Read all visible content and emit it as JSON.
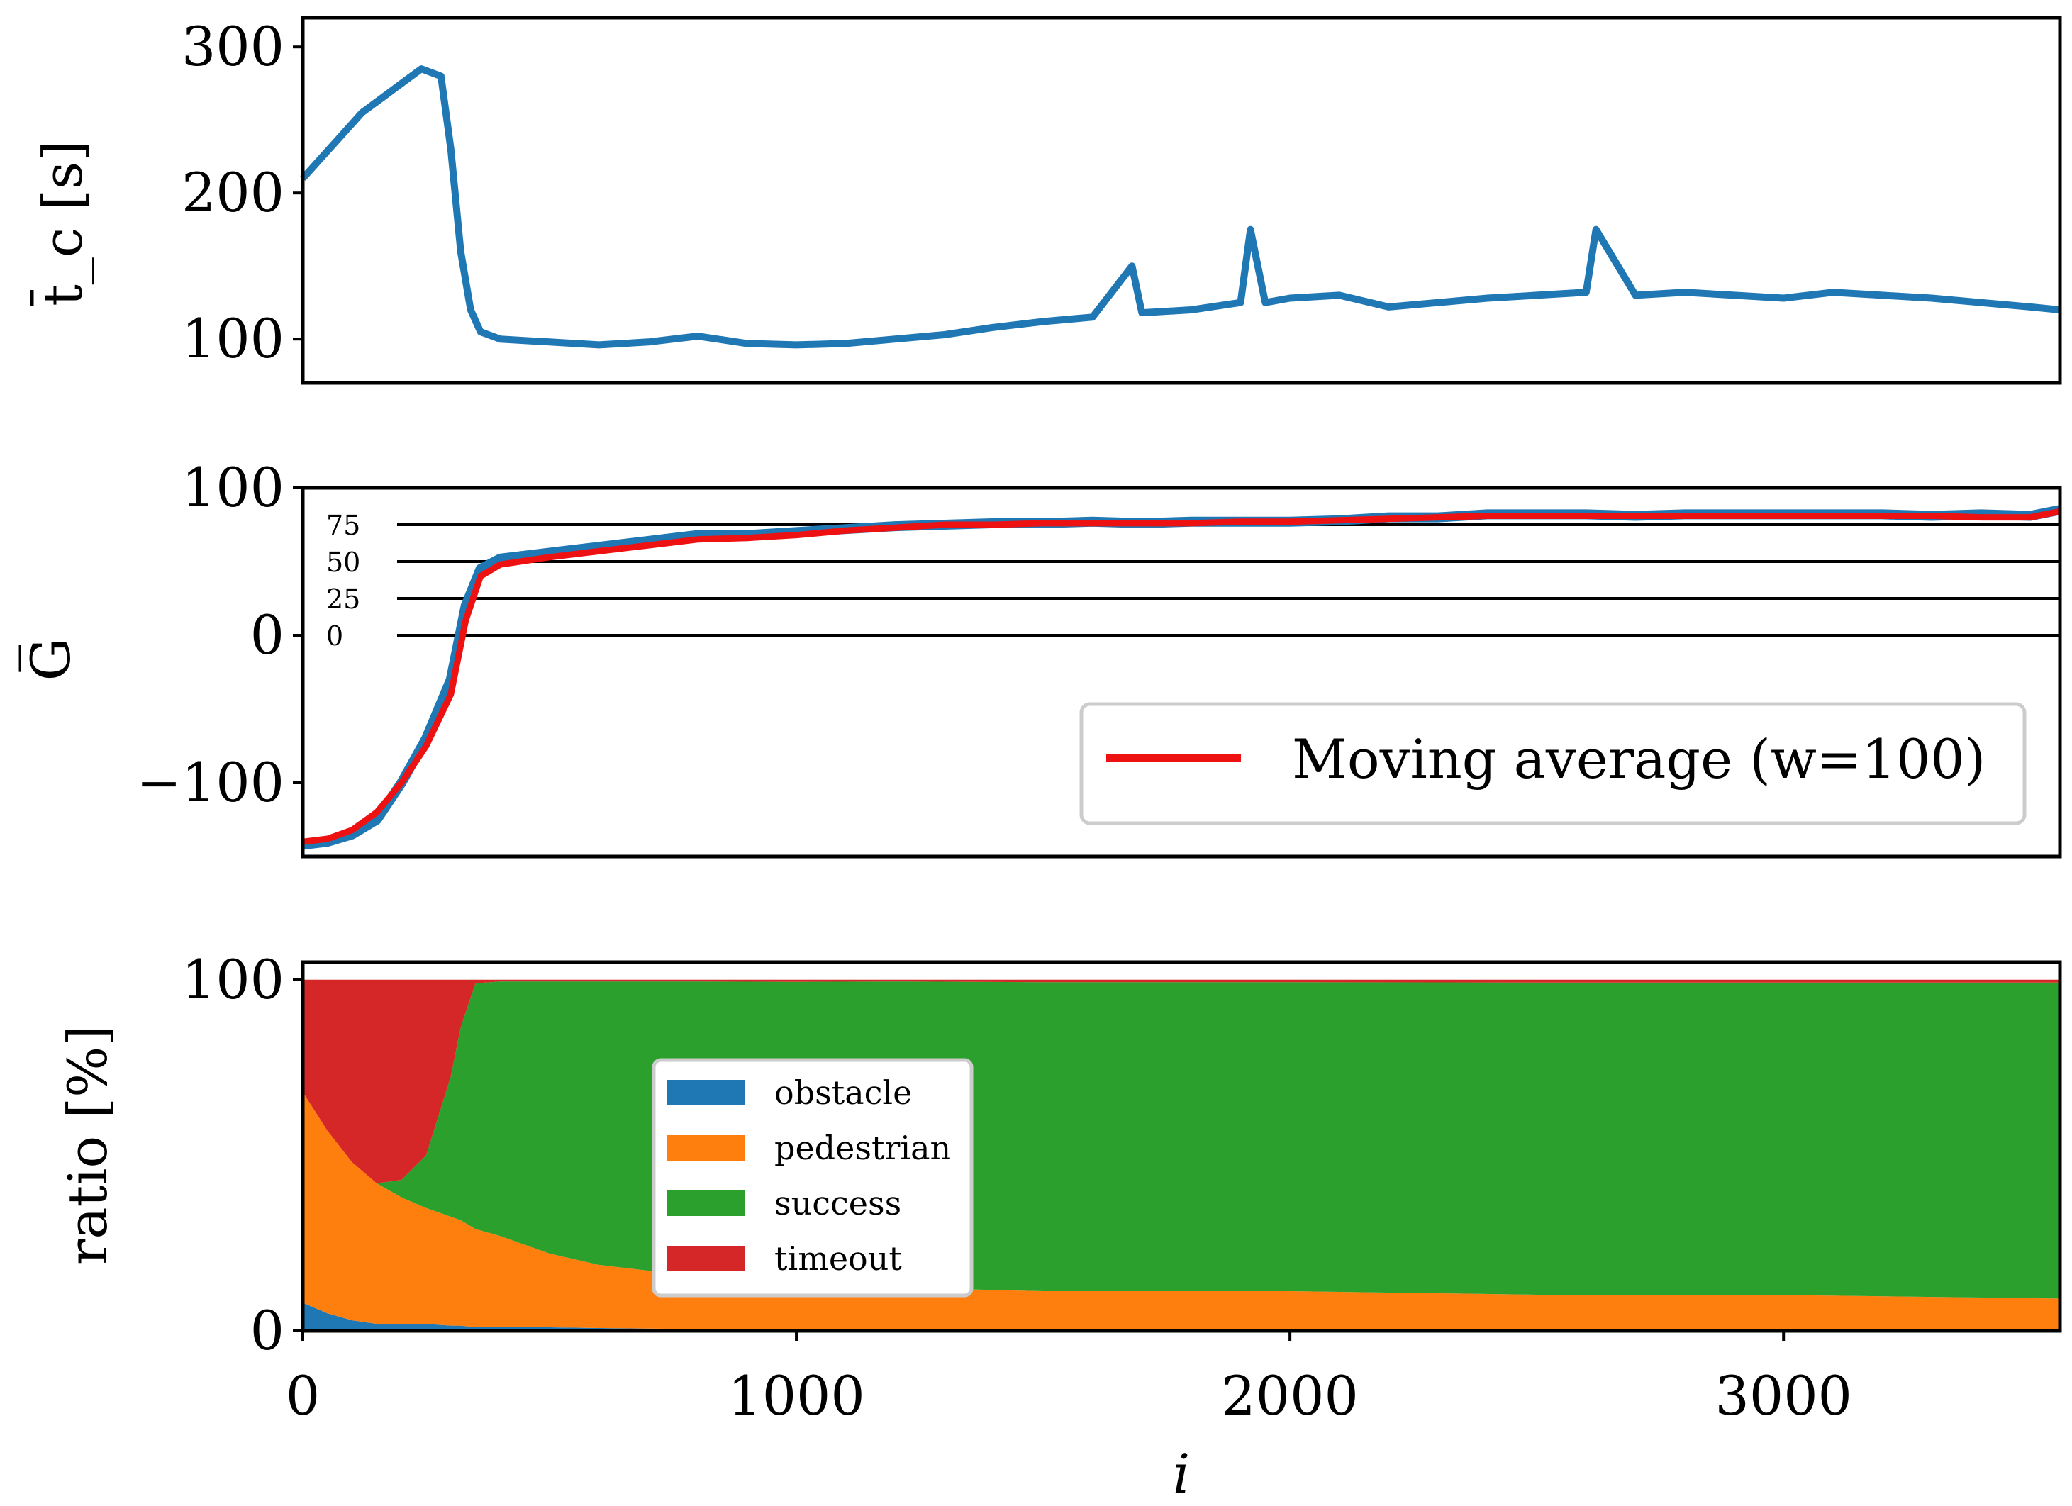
{
  "chart_data": [
    {
      "id": "completion-time",
      "type": "line",
      "ylabel": "t̄_c [s]",
      "ylim": [
        70,
        320
      ],
      "xlim": [
        0,
        3560
      ],
      "yticks": [
        100,
        200,
        300
      ],
      "ytick_labels": [
        "100",
        "200",
        "300"
      ],
      "color": "#1f77b4",
      "series": [
        {
          "name": "t_c",
          "x": [
            0,
            40,
            80,
            120,
            160,
            200,
            240,
            280,
            300,
            320,
            340,
            360,
            400,
            500,
            600,
            700,
            800,
            900,
            1000,
            1100,
            1200,
            1300,
            1400,
            1500,
            1600,
            1680,
            1700,
            1800,
            1900,
            1920,
            1950,
            2000,
            2100,
            2200,
            2300,
            2400,
            2500,
            2600,
            2620,
            2700,
            2800,
            2900,
            3000,
            3100,
            3200,
            3300,
            3400,
            3500,
            3560
          ],
          "y": [
            210,
            225,
            240,
            255,
            265,
            275,
            285,
            280,
            230,
            160,
            120,
            105,
            100,
            98,
            96,
            98,
            102,
            97,
            96,
            97,
            100,
            103,
            108,
            112,
            115,
            150,
            118,
            120,
            125,
            175,
            125,
            128,
            130,
            122,
            125,
            128,
            130,
            132,
            175,
            130,
            132,
            130,
            128,
            132,
            130,
            128,
            125,
            122,
            120
          ]
        }
      ]
    },
    {
      "id": "return",
      "type": "line",
      "ylabel": "G̅",
      "ylim": [
        -150,
        100
      ],
      "xlim": [
        0,
        3560
      ],
      "yticks": [
        -100,
        0,
        100
      ],
      "ytick_labels": [
        "−100",
        "0",
        "100"
      ],
      "reference_lines": [
        0,
        25,
        50,
        75
      ],
      "reference_labels": [
        "0",
        "25",
        "50",
        "75"
      ],
      "series": [
        {
          "name": "G",
          "color": "#1f77b4",
          "x": [
            0,
            50,
            100,
            150,
            200,
            250,
            300,
            330,
            360,
            400,
            500,
            600,
            700,
            800,
            900,
            1000,
            1100,
            1200,
            1300,
            1400,
            1500,
            1600,
            1700,
            1800,
            1900,
            2000,
            2100,
            2200,
            2300,
            2400,
            2500,
            2600,
            2700,
            2800,
            2900,
            3000,
            3100,
            3200,
            3300,
            3400,
            3500,
            3560
          ],
          "y": [
            -142,
            -140,
            -135,
            -125,
            -100,
            -70,
            -30,
            20,
            45,
            52,
            56,
            60,
            64,
            68,
            68,
            70,
            72,
            74,
            75,
            76,
            76,
            77,
            76,
            77,
            77,
            77,
            78,
            80,
            80,
            82,
            82,
            82,
            81,
            82,
            82,
            82,
            82,
            82,
            81,
            82,
            81,
            85
          ]
        },
        {
          "name": "Moving average (w=100)",
          "color": "#ee1111",
          "x": [
            0,
            50,
            100,
            150,
            200,
            250,
            300,
            330,
            360,
            400,
            500,
            600,
            700,
            800,
            900,
            1000,
            1100,
            1200,
            1300,
            1400,
            1500,
            1600,
            1700,
            1800,
            1900,
            2000,
            2100,
            2200,
            2300,
            2400,
            2500,
            2600,
            2700,
            2800,
            2900,
            3000,
            3100,
            3200,
            3300,
            3400,
            3500,
            3560
          ],
          "y": [
            -140,
            -138,
            -132,
            -120,
            -100,
            -75,
            -40,
            10,
            40,
            48,
            53,
            57,
            61,
            65,
            66,
            68,
            71,
            73,
            75,
            75,
            76,
            76,
            76,
            76,
            77,
            77,
            78,
            79,
            80,
            81,
            81,
            81,
            81,
            81,
            81,
            81,
            81,
            81,
            81,
            80,
            80,
            84
          ]
        }
      ],
      "legend": {
        "location": "lower-right",
        "label": "Moving average (w=100)"
      }
    },
    {
      "id": "outcome-ratio",
      "type": "area",
      "stacked": true,
      "ylabel": "ratio [%]",
      "xlabel": "i",
      "ylim": [
        0,
        105
      ],
      "xlim": [
        0,
        3560
      ],
      "yticks": [
        0,
        100
      ],
      "ytick_labels": [
        "0",
        "100"
      ],
      "xticks": [
        0,
        1000,
        2000,
        3000
      ],
      "xtick_labels": [
        "0",
        "1000",
        "2000",
        "3000"
      ],
      "x": [
        0,
        50,
        100,
        150,
        200,
        250,
        300,
        320,
        350,
        400,
        500,
        600,
        800,
        1000,
        1200,
        1500,
        2000,
        2500,
        3000,
        3560
      ],
      "series": [
        {
          "name": "obstacle",
          "color": "#1f77b4",
          "values": [
            8,
            5,
            3,
            2,
            2,
            2,
            1.5,
            1.5,
            1,
            1,
            1,
            0.8,
            0.5,
            0.4,
            0.3,
            0.3,
            0.3,
            0.3,
            0.2,
            0.2
          ]
        },
        {
          "name": "pedestrian",
          "color": "#ff7f0e",
          "values": [
            60,
            52,
            45,
            40,
            36,
            33,
            31,
            30,
            28,
            26,
            21,
            18,
            15,
            13,
            12,
            11,
            11,
            10,
            10,
            9
          ]
        },
        {
          "name": "success",
          "color": "#2ca02c",
          "values": [
            0,
            0,
            0,
            0,
            5,
            15,
            40,
            55,
            70,
            72.5,
            77.5,
            80.7,
            84,
            86,
            87.2,
            88,
            88,
            88.9,
            89,
            90
          ]
        },
        {
          "name": "timeout",
          "color": "#d62728",
          "values": [
            32,
            43,
            52,
            58,
            57,
            50,
            27.5,
            13.5,
            1,
            0.5,
            0.5,
            0.5,
            0.5,
            0.6,
            0.5,
            0.7,
            0.7,
            0.8,
            0.8,
            0.8
          ]
        }
      ],
      "legend": {
        "location": "center-left",
        "entries": [
          "obstacle",
          "pedestrian",
          "success",
          "timeout"
        ]
      }
    }
  ]
}
